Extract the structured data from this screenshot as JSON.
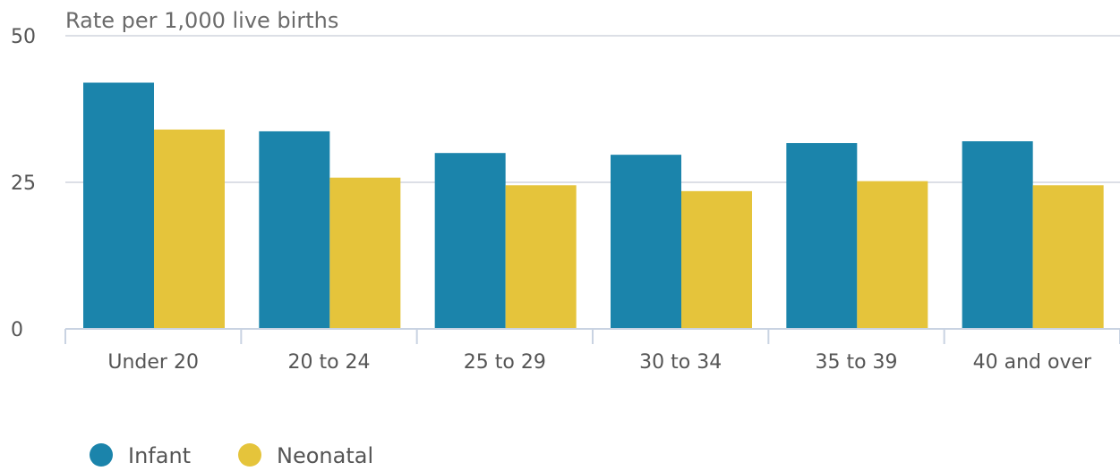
{
  "chart_data": {
    "type": "bar",
    "title": "",
    "xlabel": "",
    "ylabel": "Rate per 1,000 live births",
    "categories": [
      "Under 20",
      "20 to 24",
      "25 to 29",
      "30 to 34",
      "35 to 39",
      "40 and over"
    ],
    "series": [
      {
        "name": "Infant",
        "color": "#1b84ab",
        "values": [
          42,
          33.7,
          30,
          29.7,
          31.7,
          32
        ]
      },
      {
        "name": "Neonatal",
        "color": "#e5c43b",
        "values": [
          34,
          25.8,
          24.5,
          23.5,
          25.2,
          24.5
        ]
      }
    ],
    "ylim": [
      0,
      50
    ],
    "yticks": [
      "0",
      "25",
      "50"
    ],
    "grid": true,
    "legend_position": "bottom-left"
  }
}
